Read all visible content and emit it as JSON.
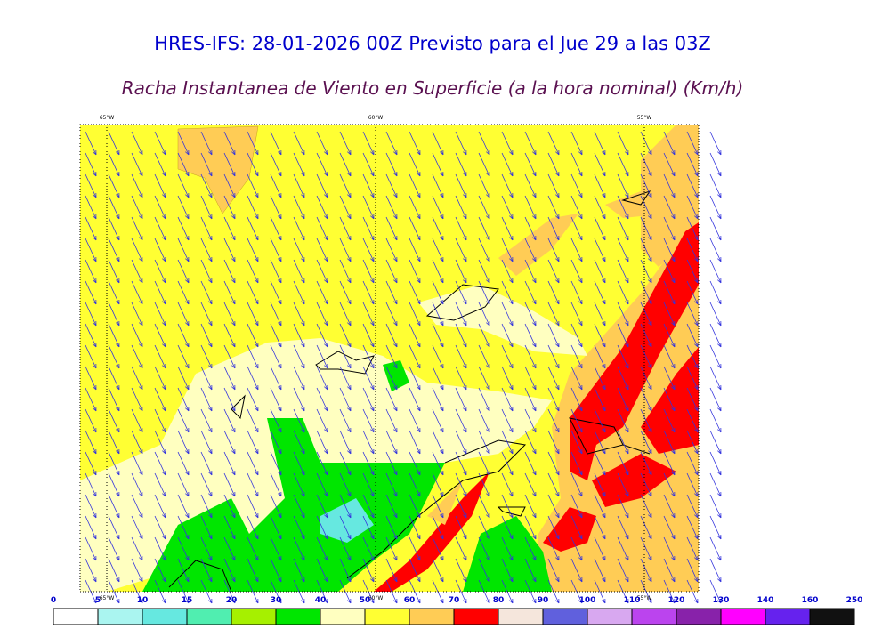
{
  "header": {
    "title": "HRES-IFS: 28-01-2026 00Z Previsto para el Jue 29 a las 03Z",
    "subtitle": "Racha Instantanea de Viento en Superficie (a la hora nominal) (Km/h)"
  },
  "map": {
    "longitudes": [
      "65°W",
      "60°W",
      "55°W"
    ]
  },
  "colorbar": {
    "ticks": [
      0,
      5,
      10,
      15,
      20,
      30,
      40,
      50,
      60,
      70,
      80,
      90,
      100,
      110,
      120,
      130,
      140,
      160,
      250
    ],
    "colors": [
      "#ffffff",
      "#aaf5f0",
      "#66e8e0",
      "#50eeb0",
      "#a6f000",
      "#00e600",
      "#ffffc0",
      "#ffff33",
      "#ffcc55",
      "#ff0000",
      "#f5e6dc",
      "#6060dd",
      "#d8a8f0",
      "#bb44ee",
      "#8822aa",
      "#ff00ff",
      "#6622ee",
      "#111111"
    ]
  }
}
